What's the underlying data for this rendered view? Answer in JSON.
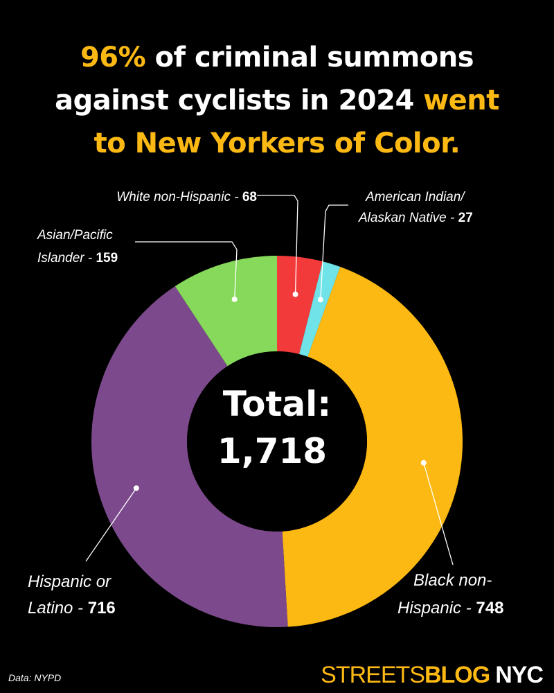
{
  "title": {
    "line1_highlight": "96%",
    "line1_rest": " of criminal summons",
    "line2": "against cyclists in 2024 ",
    "line2_highlight": "went",
    "line3_highlight": "to New Yorkers of Color."
  },
  "center": {
    "label": "Total:",
    "value": "1,718"
  },
  "source": "Data: NYPD",
  "brand": {
    "part1": "STREETS",
    "part2": "BLOG",
    "part3": "NYC"
  },
  "colors": {
    "accent": "#fdb913",
    "white_non_hispanic": "#f23a3a",
    "american_indian": "#6fe3e8",
    "black_non_hispanic": "#fdb913",
    "hispanic_latino": "#7c4a8c",
    "asian_pacific": "#86d95a"
  },
  "chart_data": {
    "type": "pie",
    "subtype": "donut",
    "total": 1718,
    "slices": [
      {
        "label_lines": [
          "White non-Hispanic - "
        ],
        "value_label": "68",
        "value": 68,
        "color": "#f23a3a"
      },
      {
        "label_lines": [
          "American Indian/",
          "Alaskan Native - "
        ],
        "value_label": "27",
        "value": 27,
        "color": "#6fe3e8"
      },
      {
        "label_lines": [
          "Black non-",
          "Hispanic - "
        ],
        "value_label": "748",
        "value": 748,
        "color": "#fdb913"
      },
      {
        "label_lines": [
          "Hispanic or",
          "Latino - "
        ],
        "value_label": "716",
        "value": 716,
        "color": "#7c4a8c"
      },
      {
        "label_lines": [
          "Asian/Pacific",
          "Islander - "
        ],
        "value_label": "159",
        "value": 159,
        "color": "#86d95a"
      }
    ]
  }
}
